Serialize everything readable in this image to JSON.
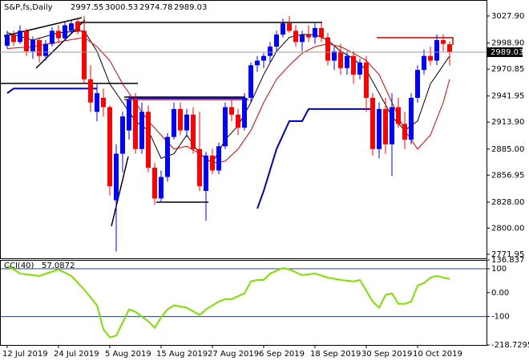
{
  "chart_data": [
    {
      "type": "candlestick",
      "title": "S&P,fs,Daily",
      "categories": [
        "12 Jul 2019",
        null,
        null,
        null,
        null,
        null,
        null,
        null,
        "24 Jul 2019",
        null,
        null,
        null,
        null,
        null,
        null,
        null,
        "5 Aug 2019",
        null,
        null,
        null,
        null,
        null,
        null,
        null,
        "15 Aug 2019",
        null,
        null,
        null,
        null,
        null,
        null,
        null,
        "27 Aug 2019",
        null,
        null,
        null,
        null,
        null,
        null,
        null,
        "6 Sep 2019",
        null,
        null,
        null,
        null,
        null,
        null,
        null,
        "18 Sep 2019",
        null,
        null,
        null,
        null,
        null,
        null,
        null,
        "30 Sep 2019",
        null,
        null,
        null,
        null,
        null,
        null,
        null,
        "10 Oct 2019",
        null,
        null,
        null,
        null,
        null
      ],
      "open": [
        2996,
        3008,
        3000,
        3012,
        2990,
        3002,
        2985,
        2998,
        3012,
        3004,
        3012,
        3022,
        3012,
        2960,
        2925,
        2940,
        2930,
        2830,
        2880,
        2905,
        2938,
        2885,
        2925,
        2865,
        2832,
        2855,
        2898,
        2928,
        2905,
        2922,
        2885,
        2840,
        2878,
        2862,
        2888,
        2930,
        2922,
        2908,
        2940,
        2975,
        2980,
        2985,
        2995,
        3008,
        3020,
        3012,
        3000,
        3008,
        3005,
        3015,
        3005,
        2980,
        2990,
        2972,
        2985,
        2965,
        2978,
        2940,
        2885,
        2928,
        2890,
        2930,
        2912,
        2895,
        2940,
        2970,
        2985,
        2980,
        3002,
        2997.55
      ],
      "high": [
        3012,
        3012,
        3018,
        3014,
        3006,
        3005,
        3002,
        3016,
        3018,
        3022,
        3024,
        3026,
        3028,
        2975,
        2955,
        2950,
        2932,
        2890,
        2925,
        2942,
        2945,
        2935,
        2932,
        2870,
        2862,
        2902,
        2935,
        2935,
        2928,
        2930,
        2925,
        2882,
        2885,
        2892,
        2935,
        2938,
        2928,
        2945,
        2978,
        2985,
        2988,
        3000,
        3012,
        3025,
        3028,
        3018,
        3012,
        3018,
        3020,
        3022,
        3010,
        2995,
        2998,
        2990,
        2990,
        2982,
        2985,
        2945,
        2935,
        2940,
        2945,
        2940,
        2925,
        2945,
        2975,
        2992,
        2995,
        3008,
        3008,
        3000.53
      ],
      "low": [
        2993,
        2996,
        2998,
        2985,
        2982,
        2978,
        2980,
        2995,
        3000,
        3001,
        3008,
        3008,
        2955,
        2925,
        2915,
        2920,
        2835,
        2775,
        2860,
        2895,
        2880,
        2880,
        2860,
        2825,
        2828,
        2850,
        2895,
        2900,
        2898,
        2880,
        2840,
        2808,
        2858,
        2858,
        2885,
        2915,
        2900,
        2905,
        2935,
        2968,
        2972,
        2978,
        2990,
        3005,
        3010,
        2995,
        2990,
        3000,
        2998,
        3000,
        2975,
        2970,
        2965,
        2965,
        2955,
        2960,
        2925,
        2878,
        2875,
        2880,
        2856,
        2908,
        2885,
        2890,
        2935,
        2965,
        2975,
        2975,
        2990,
        2974.78
      ],
      "close": [
        3008,
        3000,
        3012,
        2990,
        3002,
        2985,
        2998,
        3012,
        3004,
        3018,
        3020,
        3012,
        2960,
        2935,
        2945,
        2930,
        2845,
        2880,
        2920,
        2938,
        2885,
        2925,
        2865,
        2832,
        2855,
        2898,
        2928,
        2905,
        2922,
        2885,
        2845,
        2878,
        2862,
        2888,
        2930,
        2922,
        2908,
        2940,
        2975,
        2980,
        2985,
        2995,
        3008,
        3020,
        3012,
        3000,
        3008,
        3005,
        3015,
        3005,
        2980,
        2990,
        2972,
        2985,
        2965,
        2978,
        2940,
        2885,
        2928,
        2890,
        2930,
        2912,
        2895,
        2940,
        2970,
        2985,
        2980,
        3002,
        2998,
        2989.03
      ],
      "up_color": "#0000ff",
      "down_color": "#ff0000",
      "overlays": [
        {
          "color": "#000000",
          "x": [
            0,
            4,
            8,
            12,
            14,
            16,
            18,
            20,
            22,
            24,
            26,
            28,
            30,
            32,
            34,
            36,
            38,
            40,
            42,
            44,
            46,
            48,
            50,
            52,
            54,
            56,
            58,
            60,
            62,
            64,
            66,
            68,
            69
          ],
          "values": [
            3010,
            3002,
            3010,
            3012,
            2990,
            2955,
            2935,
            2915,
            2905,
            2875,
            2880,
            2900,
            2880,
            2870,
            2895,
            2910,
            2935,
            2965,
            2990,
            3005,
            3008,
            3008,
            3002,
            2990,
            2982,
            2970,
            2945,
            2920,
            2905,
            2915,
            2955,
            2975,
            2985
          ]
        },
        {
          "color": "#dd0000",
          "x": [
            0,
            4,
            8,
            12,
            14,
            16,
            18,
            20,
            22,
            24,
            26,
            28,
            30,
            32,
            34,
            36,
            38,
            40,
            42,
            44,
            46,
            48,
            50,
            52,
            54,
            56,
            58,
            60,
            62,
            64,
            66,
            68,
            69
          ],
          "values": [
            2993,
            2995,
            3000,
            3005,
            2995,
            2980,
            2955,
            2935,
            2915,
            2900,
            2885,
            2888,
            2880,
            2870,
            2872,
            2885,
            2905,
            2935,
            2960,
            2975,
            2988,
            2995,
            2998,
            2995,
            2988,
            2980,
            2965,
            2935,
            2905,
            2885,
            2900,
            2935,
            2960
          ]
        },
        {
          "color": "#0000cc",
          "x": [
            0,
            1,
            14,
            15,
            19,
            37,
            38,
            39,
            40,
            42,
            44,
            46,
            47,
            49,
            57
          ],
          "values": [
            2945,
            2950,
            2950,
            null,
            2940,
            2940,
            null,
            2821,
            2840,
            2885,
            2915,
            2915,
            2928,
            2928,
            2928
          ]
        }
      ],
      "ylim": [
        2767.6,
        3045.1
      ],
      "yticks": [
        {
          "value": 3027.9,
          "label": "3027.90"
        },
        {
          "value": 2998.9,
          "label": "2998.90"
        },
        2970.85,
        2941.95,
        {
          "value": 2913.9,
          "label": "2913.90"
        },
        {
          "value": 2885,
          "label": "2885.00"
        },
        2856.95,
        {
          "value": 2828,
          "label": "2828.00"
        },
        {
          "value": 2800,
          "label": "2800.00"
        },
        2771.95
      ]
    },
    {
      "type": "line",
      "title": "CCI(40)",
      "last_value": 57.0872,
      "color": "#7fe000",
      "x": [
        0,
        2,
        5,
        8,
        10,
        12,
        14,
        15,
        16,
        17,
        19,
        20,
        22,
        23,
        24,
        25,
        26,
        28,
        30,
        31,
        33,
        34,
        35,
        37,
        38,
        39,
        40,
        41,
        43,
        44,
        46,
        48,
        50,
        52,
        54,
        55,
        57,
        58,
        59,
        60,
        61,
        62,
        63,
        64,
        65,
        66,
        67,
        68,
        69
      ],
      "values": [
        113,
        80,
        70,
        97,
        70,
        13,
        -53,
        -153,
        -187,
        -180,
        -70,
        -80,
        -120,
        -147,
        -103,
        -70,
        -53,
        -63,
        -93,
        -70,
        -37,
        -27,
        -27,
        -3,
        47,
        53,
        53,
        80,
        103,
        97,
        73,
        80,
        63,
        53,
        47,
        53,
        -37,
        -63,
        -10,
        -3,
        -47,
        -47,
        -37,
        30,
        40,
        63,
        70,
        63,
        57.0872
      ],
      "ylim": [
        -218.7295,
        136.837
      ],
      "yticks": [
        136.837,
        100,
        {
          "value": 0,
          "label": "0.00"
        },
        -100,
        -218.7295
      ],
      "levels": [
        100,
        -100
      ]
    }
  ]
}
